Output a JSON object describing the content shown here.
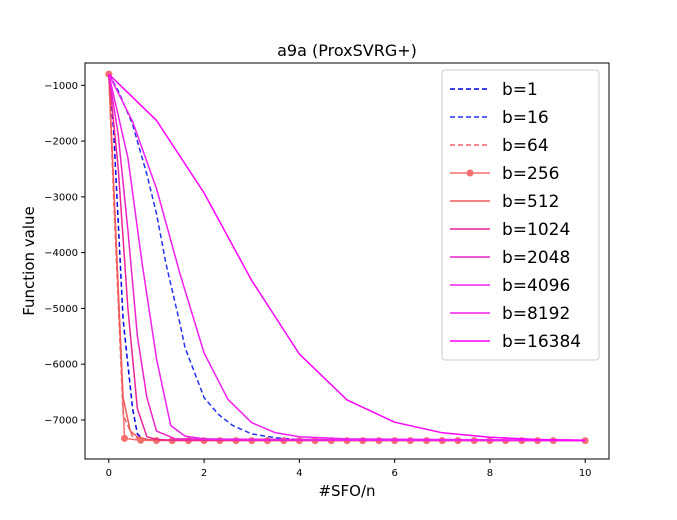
{
  "chart_data": {
    "type": "line",
    "title": "a9a (ProxSVRG+)",
    "xlabel": "#SFO/n",
    "ylabel": "Function value",
    "xlim": [
      -0.5,
      10.5
    ],
    "ylim": [
      -7700,
      -600
    ],
    "xticks": [
      0,
      2,
      4,
      6,
      8,
      10
    ],
    "yticks": [
      -7000,
      -6000,
      -5000,
      -4000,
      -3000,
      -2000,
      -1000
    ],
    "xtick_labels": [
      "0",
      "2",
      "4",
      "6",
      "8",
      "10"
    ],
    "ytick_labels": [
      "−7000",
      "−6000",
      "−5000",
      "−4000",
      "−3000",
      "−2000",
      "−1000"
    ],
    "grid": false,
    "legend_position": "top-right",
    "series": [
      {
        "name": "b=1",
        "color": "#0000ee",
        "style": "dashed",
        "marker": "none",
        "x": [
          0,
          0.1,
          0.3,
          0.5,
          0.6,
          0.7,
          0.8,
          1.0
        ],
        "y": [
          -800,
          -1800,
          -5200,
          -6800,
          -7250,
          -7330,
          -7345,
          -7360
        ]
      },
      {
        "name": "b=16",
        "color": "#2233ee",
        "style": "dashed",
        "marker": "none",
        "x": [
          0,
          0.2,
          0.5,
          0.8,
          1.0,
          1.2,
          1.5,
          1.6,
          2.0,
          2.3,
          2.6,
          3.0,
          3.5,
          4.0,
          6.0,
          8.0,
          10.0
        ],
        "y": [
          -800,
          -1100,
          -1700,
          -2600,
          -3300,
          -4200,
          -5300,
          -5700,
          -6600,
          -6900,
          -7100,
          -7250,
          -7320,
          -7350,
          -7360,
          -7362,
          -7363
        ]
      },
      {
        "name": "b=64",
        "color": "#ee6666",
        "style": "dashed",
        "marker": "none",
        "x": [
          0,
          0.1,
          0.3,
          0.5,
          0.7,
          1.0,
          10.0
        ],
        "y": [
          -800,
          -3000,
          -6900,
          -7300,
          -7350,
          -7360,
          -7362
        ]
      },
      {
        "name": "b=256",
        "color": "#f46f6f",
        "style": "solid",
        "marker": "circle",
        "x": [
          0,
          0.33,
          0.67,
          1.0,
          1.33,
          1.67,
          2.0,
          2.33,
          2.67,
          3.0,
          3.33,
          3.67,
          4.0,
          4.33,
          4.67,
          5.0,
          5.33,
          5.67,
          6.0,
          6.33,
          6.67,
          7.0,
          7.33,
          7.67,
          8.0,
          8.33,
          8.67,
          9.0,
          9.33,
          10.0
        ],
        "y": [
          -800,
          -7330,
          -7365,
          -7368,
          -7370,
          -7370,
          -7370,
          -7370,
          -7370,
          -7370,
          -7370,
          -7370,
          -7370,
          -7370,
          -7370,
          -7370,
          -7370,
          -7370,
          -7370,
          -7370,
          -7370,
          -7370,
          -7370,
          -7370,
          -7370,
          -7370,
          -7370,
          -7370,
          -7370,
          -7370
        ]
      },
      {
        "name": "b=512",
        "color": "#f25a5a",
        "style": "solid",
        "marker": "none",
        "x": [
          0,
          0.3,
          0.45,
          0.6,
          0.8,
          1.0,
          10.0
        ],
        "y": [
          -800,
          -6600,
          -7200,
          -7300,
          -7350,
          -7365,
          -7368
        ]
      },
      {
        "name": "b=1024",
        "color": "#ee2299",
        "style": "solid",
        "marker": "none",
        "x": [
          0,
          0.2,
          0.4,
          0.6,
          0.8,
          1.0,
          1.4,
          10.0
        ],
        "y": [
          -800,
          -2500,
          -5000,
          -6800,
          -7300,
          -7350,
          -7365,
          -7368
        ]
      },
      {
        "name": "b=2048",
        "color": "#ee22cc",
        "style": "solid",
        "marker": "none",
        "x": [
          0,
          0.2,
          0.4,
          0.6,
          0.8,
          1.0,
          1.4,
          10.0
        ],
        "y": [
          -800,
          -1900,
          -3600,
          -5500,
          -6600,
          -7200,
          -7340,
          -7368
        ]
      },
      {
        "name": "b=4096",
        "color": "#ee22ee",
        "style": "solid",
        "marker": "none",
        "x": [
          0,
          0.4,
          0.7,
          1.0,
          1.3,
          1.6,
          2.0,
          3.0,
          10.0
        ],
        "y": [
          -800,
          -2300,
          -4200,
          -5900,
          -7100,
          -7290,
          -7340,
          -7360,
          -7368
        ]
      },
      {
        "name": "b=8192",
        "color": "#f21ff2",
        "style": "solid",
        "marker": "none",
        "x": [
          0,
          0.5,
          1.0,
          1.5,
          2.0,
          2.5,
          3.0,
          3.5,
          4.0,
          5.0,
          10.0
        ],
        "y": [
          -800,
          -1650,
          -2850,
          -4400,
          -5800,
          -6630,
          -7050,
          -7230,
          -7300,
          -7340,
          -7365
        ]
      },
      {
        "name": "b=16384",
        "color": "#ff00ff",
        "style": "solid",
        "marker": "none",
        "x": [
          0,
          1.0,
          2.0,
          3.0,
          4.0,
          5.0,
          6.0,
          7.0,
          8.0,
          9.0,
          10.0
        ],
        "y": [
          -800,
          -1630,
          -2930,
          -4500,
          -5820,
          -6640,
          -7040,
          -7230,
          -7310,
          -7350,
          -7365
        ]
      }
    ]
  }
}
